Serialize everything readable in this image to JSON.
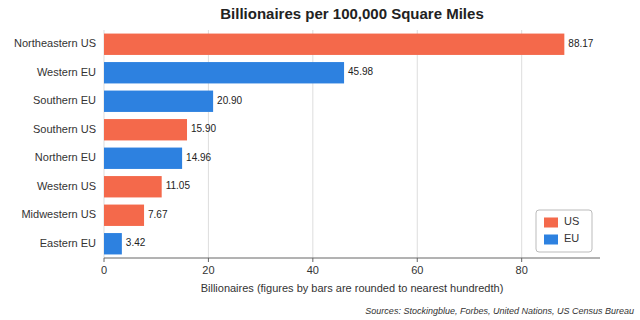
{
  "chart_data": {
    "type": "bar",
    "orientation": "horizontal",
    "title": "Billionaires per 100,000 Square Miles",
    "xlabel": "Billionaires (figures by bars are rounded to nearest hundredth)",
    "annotations": [
      "Sources: Stockingblue, Forbes, United Nations, US Census Bureau"
    ],
    "categories": [
      "Eastern EU",
      "Midwestern US",
      "Western US",
      "Northern EU",
      "Southern US",
      "Southern EU",
      "Western EU",
      "Northeastern US"
    ],
    "values": [
      3.42,
      7.67,
      11.05,
      14.96,
      15.9,
      20.9,
      45.98,
      88.17
    ],
    "value_labels": [
      "3.42",
      "7.67",
      "11.05",
      "14.96",
      "15.90",
      "20.90",
      "45.98",
      "88.17"
    ],
    "colors": [
      "#2d81e0",
      "#f4694b",
      "#f4694b",
      "#2d81e0",
      "#f4694b",
      "#2d81e0",
      "#2d81e0",
      "#f4694b"
    ],
    "legend_items": [
      {
        "name": "US",
        "color": "#f4694b"
      },
      {
        "name": "EU",
        "color": "#2d81e0"
      }
    ],
    "legend": "lower right",
    "xlim": [
      0,
      95
    ],
    "xticks": [
      0,
      20,
      40,
      60,
      80
    ],
    "grid": true,
    "data_labels": true
  }
}
